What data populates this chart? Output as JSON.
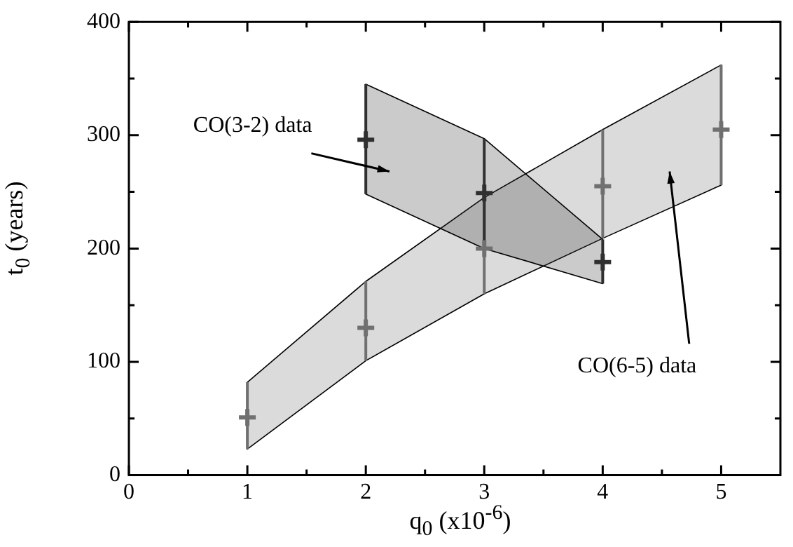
{
  "chart_data": {
    "type": "scatter",
    "xlabel": "q$_{0}$ (x10$^{-6}$)",
    "ylabel": "t$_{0}$ (years)",
    "xlim": [
      0,
      5.5
    ],
    "xticks": [
      0,
      {
        "value": 0.5,
        "label": null
      },
      1,
      {
        "value": 1.5,
        "label": null
      },
      2,
      {
        "value": 2.5,
        "label": null
      },
      3,
      {
        "value": 3.5,
        "label": null
      },
      4,
      {
        "value": 4.5,
        "label": null
      },
      5
    ],
    "ylim": [
      0,
      400
    ],
    "yticks": [
      0,
      {
        "value": 50,
        "label": null
      },
      100,
      {
        "value": 150,
        "label": null
      },
      200,
      {
        "value": 250,
        "label": null
      },
      300,
      {
        "value": 350,
        "label": null
      },
      400
    ],
    "grid": false,
    "legend": false,
    "marker": "cross",
    "series": [
      {
        "color": "#707070",
        "x": [
          1,
          2,
          3,
          4,
          5
        ],
        "values": [
          51,
          130,
          200,
          255,
          305
        ],
        "errors": [
          [
            23,
            82
          ],
          [
            101,
            171
          ],
          [
            160,
            245
          ],
          [
            209,
            305
          ],
          [
            256,
            362
          ]
        ],
        "lower": [
          23,
          101,
          160,
          209,
          256
        ],
        "upper": [
          82,
          171,
          245,
          305,
          362
        ]
      },
      {
        "color": "#303030",
        "x": [
          2,
          3,
          4
        ],
        "values": [
          296,
          249,
          188
        ],
        "errors": [
          [
            248,
            345
          ],
          [
            200,
            297
          ],
          [
            169,
            208
          ]
        ],
        "lower": [
          248,
          200,
          169
        ],
        "upper": [
          345,
          297,
          208
        ]
      }
    ],
    "annotations": [
      "CO(3-2) data",
      "CO(6-5) data"
    ]
  }
}
